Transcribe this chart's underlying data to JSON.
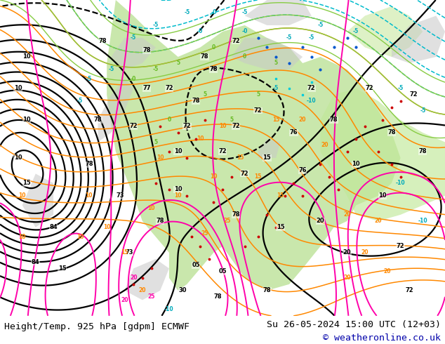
{
  "bottom_left_text": "Height/Temp. 925 hPa [gdpm] ECMWF",
  "bottom_right_text1": "Su 26-05-2024 15:00 UTC (12+03)",
  "bottom_right_text2": "© weatheronline.co.uk",
  "image_url": "https://www.weatheronline.co.uk/images/ecmwf/europe/2024/05/26/925_2024052615_12.gif",
  "bg_color": "#ffffff",
  "bottom_bar_color": "#ffffff",
  "bottom_text_color": "#000000",
  "copyright_color": "#0000aa",
  "fig_width": 6.34,
  "fig_height": 4.9,
  "dpi": 100,
  "label_fontsize": 9.5,
  "label_font": "monospace",
  "map_bg": "#f0f0f0"
}
